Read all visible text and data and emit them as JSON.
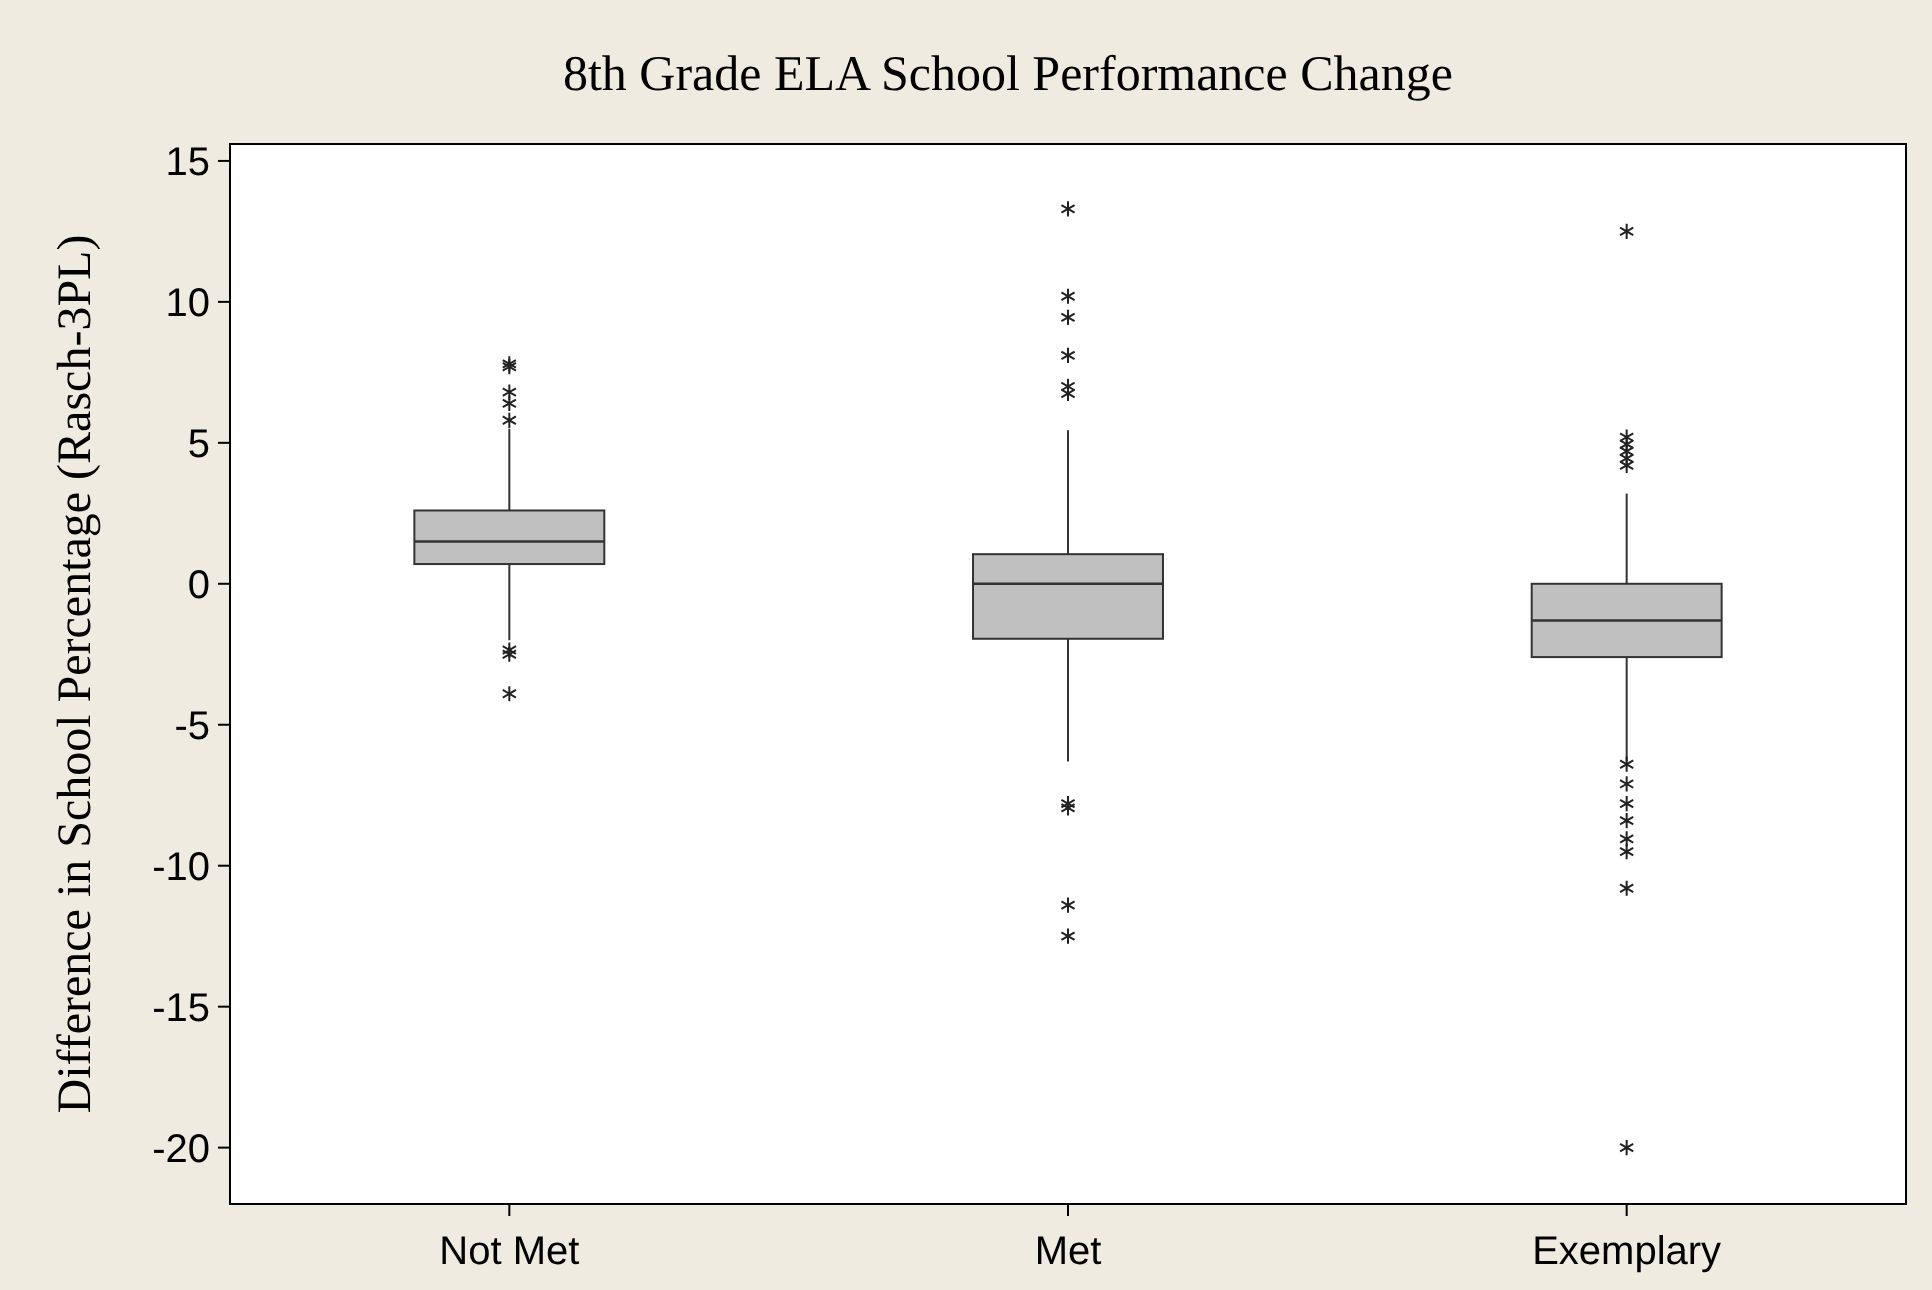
{
  "chart_data": {
    "type": "box",
    "title": "8th Grade ELA School Performance Change",
    "ylabel": "Difference in School Percentage (Rasch-3PL)",
    "categories": [
      "Not Met",
      "Met",
      "Exemplary"
    ],
    "ylim": [
      -22,
      15.6
    ],
    "yticks": [
      -20,
      -15,
      -10,
      -5,
      0,
      5,
      10,
      15
    ],
    "grid": false,
    "marker": "star",
    "series": [
      {
        "color": "#c0c0c0",
        "boxes": [
          {
            "low": -2,
            "q1": 0.7,
            "median": 1.5,
            "q3": 2.6,
            "high": 5.5,
            "outliers": [
              7.8,
              7.7,
              6.8,
              6.4,
              5.8,
              -2.35,
              -2.5,
              -3.9
            ]
          },
          {
            "low": -6.3,
            "q1": -1.95,
            "median": 0,
            "q3": 1.05,
            "high": 5.45,
            "outliers": [
              13.3,
              10.2,
              9.45,
              8.1,
              7,
              6.75,
              -7.8,
              -7.95,
              -11.4,
              -12.5
            ]
          },
          {
            "low": -6.3,
            "q1": -2.6,
            "median": -1.3,
            "q3": 0,
            "high": 3.2,
            "outliers": [
              12.5,
              5.2,
              4.95,
              4.7,
              4.45,
              4.2,
              -6.4,
              -7.1,
              -7.8,
              -8.4,
              -9.05,
              -9.5,
              -10.8,
              -20
            ]
          }
        ]
      }
    ]
  }
}
